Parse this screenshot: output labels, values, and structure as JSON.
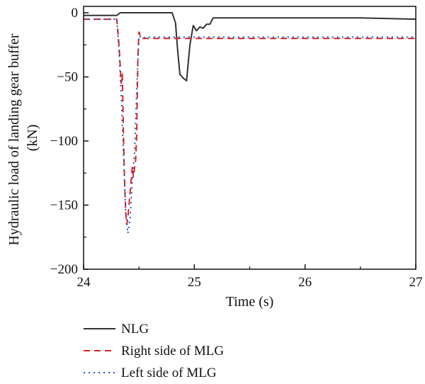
{
  "chart_data": {
    "type": "line",
    "xlabel": "Time (s)",
    "ylabel_lines": [
      "Hydraulic load of landing gear buffer",
      "(kN)"
    ],
    "xlim": [
      24,
      27
    ],
    "ylim": [
      -200,
      5
    ],
    "xticks": [
      24,
      25,
      26,
      27
    ],
    "yticks": [
      0,
      -50,
      -100,
      -150,
      -200
    ],
    "ytick_labels": [
      "0",
      "−50",
      "−100",
      "−150",
      "−200"
    ],
    "grid": false,
    "legend_position": "bottom-left-outside",
    "series": [
      {
        "name": "NLG",
        "color": "#333333",
        "style": "solid",
        "x": [
          24.0,
          24.3,
          24.33,
          24.4,
          24.6,
          24.8,
          24.83,
          24.85,
          24.87,
          24.9,
          24.93,
          24.96,
          24.99,
          25.02,
          25.05,
          25.08,
          25.11,
          25.14,
          25.17,
          25.2,
          25.5,
          26.0,
          26.5,
          27.0
        ],
        "y": [
          -2,
          -2,
          0,
          0,
          0,
          0,
          -8,
          -30,
          -48,
          -51,
          -53,
          -25,
          -10,
          -14,
          -11,
          -12,
          -9,
          -9,
          -4,
          -4,
          -4,
          -4,
          -4,
          -5
        ]
      },
      {
        "name": "Right side of MLG",
        "color": "#e02020",
        "style": "dashed",
        "x": [
          24.0,
          24.3,
          24.32,
          24.34,
          24.35,
          24.36,
          24.37,
          24.38,
          24.39,
          24.4,
          24.42,
          24.44,
          24.45,
          24.47,
          24.48,
          24.49,
          24.5,
          24.52,
          24.55,
          24.6,
          25.0,
          25.5,
          26.0,
          26.5,
          27.0
        ],
        "y": [
          -5,
          -5,
          -25,
          -55,
          -48,
          -95,
          -130,
          -155,
          -165,
          -160,
          -140,
          -120,
          -128,
          -115,
          -95,
          -35,
          -15,
          -20,
          -20,
          -20,
          -20,
          -20,
          -20,
          -20,
          -20
        ]
      },
      {
        "name": "Left side of MLG",
        "color": "#2255cc",
        "style": "dotted",
        "x": [
          24.0,
          24.3,
          24.32,
          24.34,
          24.36,
          24.38,
          24.4,
          24.42,
          24.44,
          24.46,
          24.48,
          24.5,
          24.53,
          24.56,
          24.6,
          25.0,
          25.5,
          26.0,
          26.5,
          27.0
        ],
        "y": [
          -5,
          -5,
          -30,
          -65,
          -110,
          -155,
          -172,
          -160,
          -130,
          -110,
          -60,
          -18,
          -20,
          -19,
          -19,
          -19,
          -19,
          -19,
          -19,
          -19
        ]
      }
    ]
  }
}
